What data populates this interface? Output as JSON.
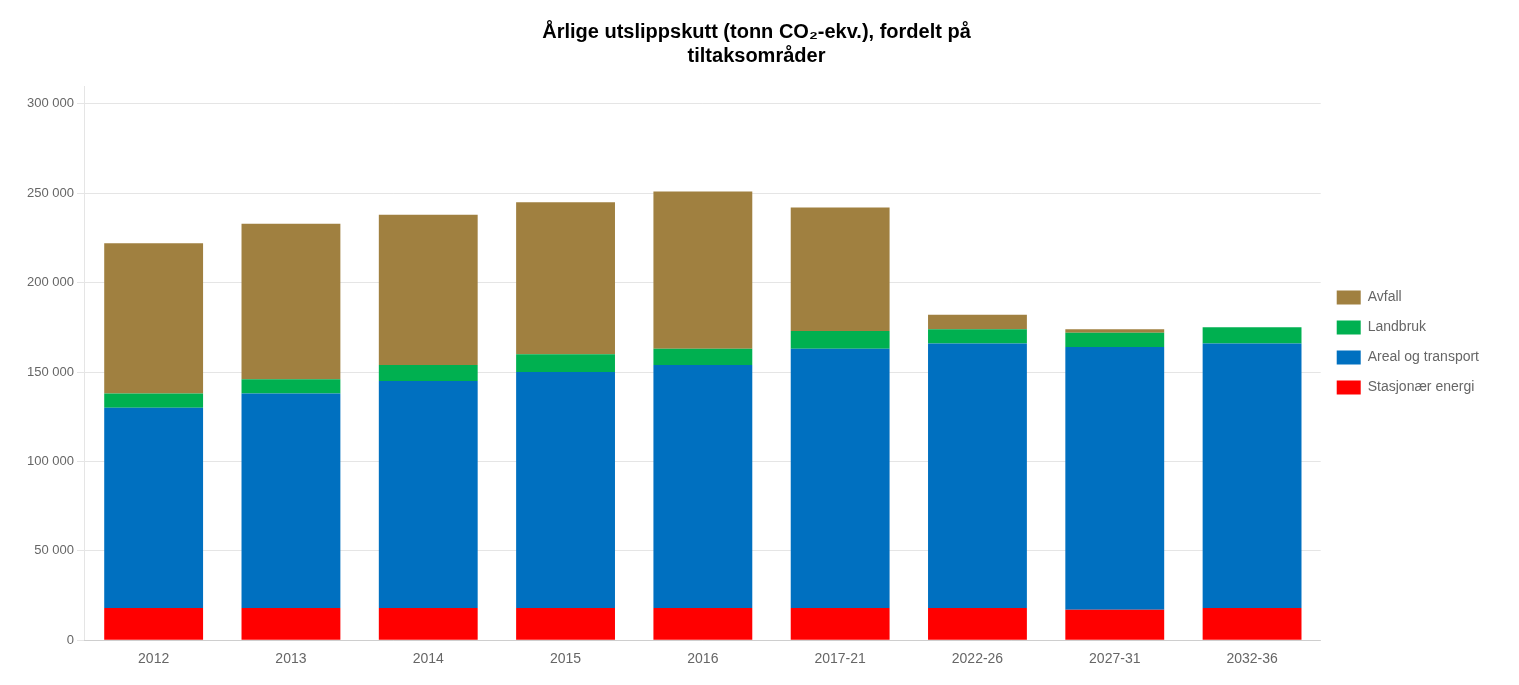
{
  "chart_data": {
    "type": "bar",
    "title": [
      "Årlige utslippskutt (tonn CO₂-ekv.), fordelt på",
      "tiltaksområder"
    ],
    "categories": [
      "2012",
      "2013",
      "2014",
      "2015",
      "2016",
      "2017-21",
      "2022-26",
      "2027-31",
      "2032-36"
    ],
    "series": [
      {
        "name": "Stasjonær energi",
        "color": "#FF0000",
        "values": [
          18000,
          18000,
          18000,
          18000,
          18000,
          18000,
          18000,
          17000,
          18000
        ]
      },
      {
        "name": "Areal og transport",
        "color": "#0070C0",
        "values": [
          112000,
          120000,
          127000,
          132000,
          136000,
          145000,
          148000,
          147000,
          148000
        ]
      },
      {
        "name": "Landbruk",
        "color": "#00B050",
        "values": [
          8000,
          8000,
          9000,
          10000,
          9000,
          10000,
          8000,
          8000,
          9000
        ]
      },
      {
        "name": "Avfall",
        "color": "#A08040",
        "values": [
          84000,
          87000,
          84000,
          85000,
          88000,
          69000,
          8000,
          2000,
          0
        ]
      }
    ],
    "stacked": true,
    "ylim": [
      0,
      310000
    ],
    "yticks": [
      0,
      {
        "value": 50000,
        "label": "50 000"
      },
      {
        "value": 100000,
        "label": "100 000"
      },
      {
        "value": 150000,
        "label": "150 000"
      },
      {
        "value": 200000,
        "label": "200 000"
      },
      {
        "value": 250000,
        "label": "250 000"
      },
      {
        "value": 300000,
        "label": "300 000"
      }
    ],
    "grid": true,
    "legend": "right"
  }
}
